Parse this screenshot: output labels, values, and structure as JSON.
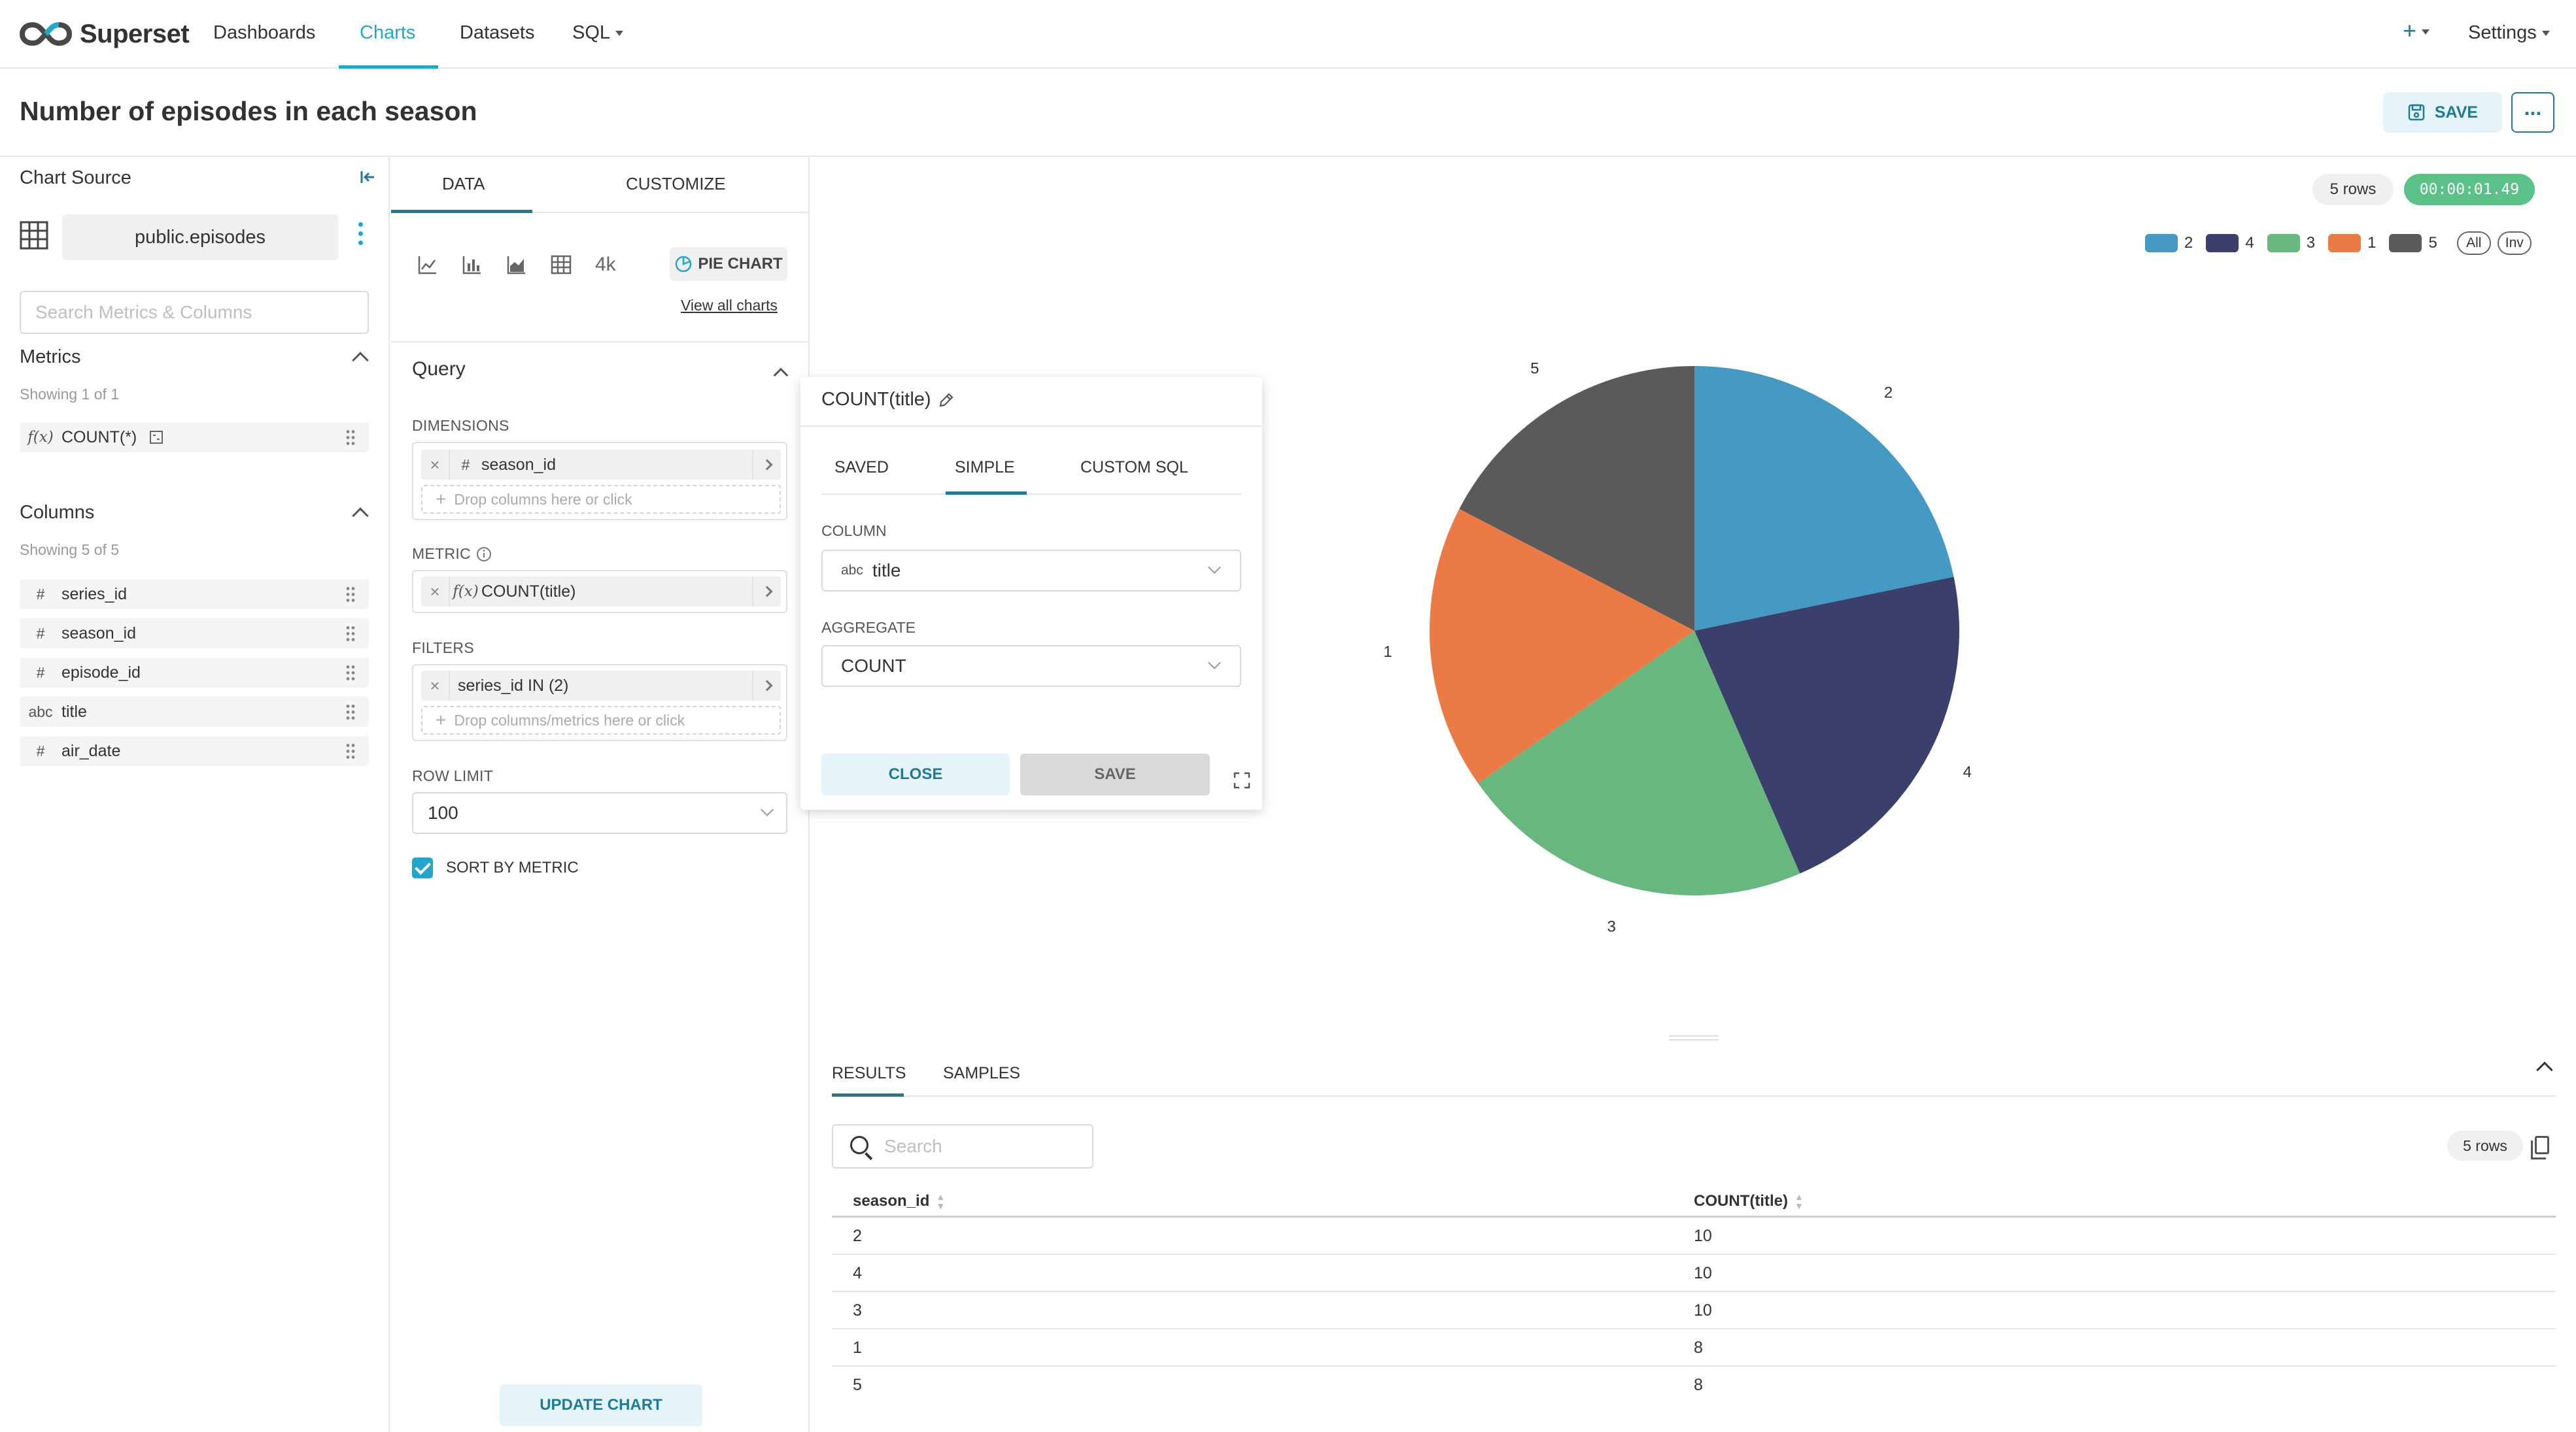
{
  "nav": {
    "brand": "Superset",
    "items": [
      "Dashboards",
      "Charts",
      "Datasets",
      "SQL"
    ],
    "plus": "+",
    "settings": "Settings"
  },
  "header": {
    "title": "Number of episodes in each season",
    "save_label": "SAVE",
    "more_label": "..."
  },
  "datasource": {
    "title": "Chart Source",
    "name": "public.episodes",
    "search_placeholder": "Search Metrics & Columns",
    "metrics_title": "Metrics",
    "metrics_showing": "Showing 1 of 1",
    "metrics": [
      {
        "type": "f(x)",
        "name": "COUNT(*)"
      }
    ],
    "columns_title": "Columns",
    "columns_showing": "Showing 5 of 5",
    "columns": [
      {
        "type": "#",
        "name": "series_id"
      },
      {
        "type": "#",
        "name": "season_id"
      },
      {
        "type": "#",
        "name": "episode_id"
      },
      {
        "type": "abc",
        "name": "title"
      },
      {
        "type": "#",
        "name": "air_date"
      }
    ]
  },
  "controls": {
    "tabs": [
      "DATA",
      "CUSTOMIZE"
    ],
    "viz_bignum": "4k",
    "viz_selected": "PIE CHART",
    "view_all": "View all charts",
    "query_title": "Query",
    "dimensions_label": "DIMENSIONS",
    "dimension": {
      "type": "#",
      "name": "season_id"
    },
    "dimension_hint": "Drop columns here or click",
    "metric_label": "METRIC",
    "metric": {
      "type": "f(x)",
      "name": "COUNT(title)"
    },
    "filters_label": "FILTERS",
    "filter": "series_id IN (2)",
    "filter_hint": "Drop columns/metrics here or click",
    "row_limit_label": "ROW LIMIT",
    "row_limit": "100",
    "sort_label": "SORT BY METRIC",
    "update_label": "UPDATE CHART"
  },
  "popover": {
    "title": "COUNT(title)",
    "tabs": [
      "SAVED",
      "SIMPLE",
      "CUSTOM SQL"
    ],
    "column_label": "COLUMN",
    "column_type": "abc",
    "column_value": "title",
    "aggregate_label": "AGGREGATE",
    "aggregate_value": "COUNT",
    "close_label": "CLOSE",
    "save_label": "SAVE"
  },
  "status": {
    "rows": "5 rows",
    "time": "00:00:01.49"
  },
  "legend": {
    "all_label": "All",
    "inv_label": "Inv"
  },
  "chart_data": {
    "type": "pie",
    "categories": [
      "2",
      "4",
      "3",
      "1",
      "5"
    ],
    "values": [
      10,
      10,
      10,
      8,
      8
    ],
    "colors": [
      "#449ac3",
      "#3b3f6b",
      "#67b77f",
      "#ec7a45",
      "#5a5a5a"
    ],
    "legend": "top-right"
  },
  "results": {
    "tabs": [
      "RESULTS",
      "SAMPLES"
    ],
    "search_placeholder": "Search",
    "rows_badge": "5 rows",
    "columns": [
      "season_id",
      "COUNT(title)"
    ],
    "rows": [
      [
        "2",
        "10"
      ],
      [
        "4",
        "10"
      ],
      [
        "3",
        "10"
      ],
      [
        "1",
        "8"
      ],
      [
        "5",
        "8"
      ]
    ]
  }
}
